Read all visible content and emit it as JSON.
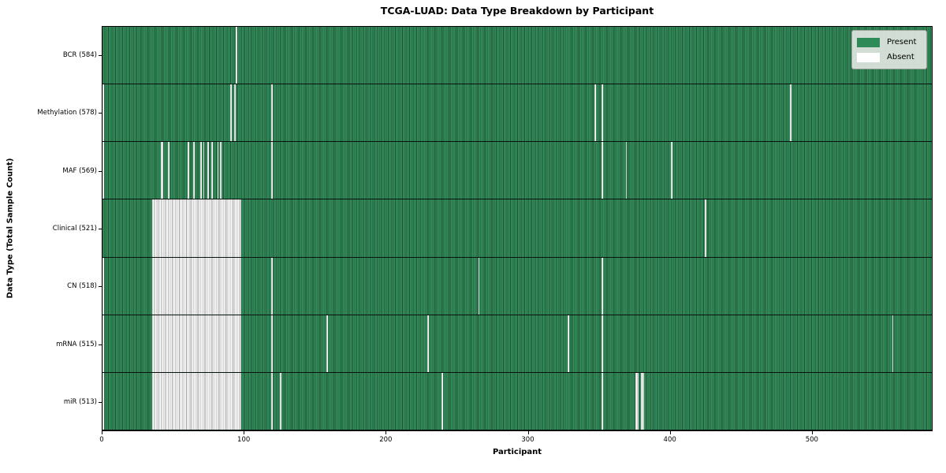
{
  "title": "TCGA-LUAD: Data Type Breakdown by Participant",
  "axes": {
    "xlabel": "Participant",
    "ylabel": "Data Type (Total Sample Count)"
  },
  "legend": {
    "present_label": "Present",
    "absent_label": "Absent"
  },
  "colors": {
    "present": "#2E8B57",
    "absent": "#ffffff",
    "present_gridline": "rgba(0,0,0,0.42)",
    "absent_gridline": "#a2a2a2"
  },
  "chart_data": {
    "type": "heatmap",
    "title": "TCGA-LUAD: Data Type Breakdown by Participant",
    "xlabel": "Participant",
    "ylabel": "Data Type (Total Sample Count)",
    "x_range": [
      0,
      585
    ],
    "total_participants": 585,
    "x_ticks": [
      0,
      100,
      200,
      300,
      400,
      500
    ],
    "grid": "cell-edges",
    "legend": [
      "Present",
      "Absent"
    ],
    "legend_position": "upper-right",
    "value_encoding": {
      "present": "green",
      "absent": "white"
    },
    "rows": [
      {
        "name": "BCR",
        "label": "BCR (584)",
        "present_count": 584,
        "absent_intervals": [
          [
            94,
            95
          ]
        ]
      },
      {
        "name": "Methylation",
        "label": "Methylation (578)",
        "present_count": 578,
        "absent_intervals": [
          [
            0,
            1
          ],
          [
            90,
            91
          ],
          [
            93,
            94
          ],
          [
            119,
            120
          ],
          [
            347,
            348
          ],
          [
            352,
            353
          ],
          [
            485,
            486
          ]
        ]
      },
      {
        "name": "MAF",
        "label": "MAF (569)",
        "present_count": 569,
        "absent_intervals": [
          [
            0,
            1
          ],
          [
            41,
            43
          ],
          [
            46,
            47
          ],
          [
            60,
            61
          ],
          [
            64,
            65
          ],
          [
            69,
            70
          ],
          [
            71,
            72
          ],
          [
            74,
            75
          ],
          [
            77,
            78
          ],
          [
            81,
            82
          ],
          [
            83,
            84
          ],
          [
            119,
            120
          ],
          [
            352,
            353
          ],
          [
            369,
            370
          ],
          [
            401,
            402
          ]
        ]
      },
      {
        "name": "Clinical",
        "label": "Clinical (521)",
        "present_count": 521,
        "absent_intervals": [
          [
            35,
            98
          ],
          [
            425,
            426
          ]
        ]
      },
      {
        "name": "CN",
        "label": "CN (518)",
        "present_count": 518,
        "absent_intervals": [
          [
            0,
            1
          ],
          [
            35,
            98
          ],
          [
            119,
            120
          ],
          [
            265,
            266
          ],
          [
            352,
            353
          ]
        ]
      },
      {
        "name": "mRNA",
        "label": "mRNA (515)",
        "present_count": 515,
        "absent_intervals": [
          [
            0,
            1
          ],
          [
            35,
            98
          ],
          [
            119,
            120
          ],
          [
            158,
            159
          ],
          [
            229,
            230
          ],
          [
            328,
            329
          ],
          [
            352,
            353
          ],
          [
            557,
            558
          ]
        ]
      },
      {
        "name": "miR",
        "label": "miR (513)",
        "present_count": 513,
        "absent_intervals": [
          [
            0,
            1
          ],
          [
            35,
            98
          ],
          [
            119,
            120
          ],
          [
            125,
            126
          ],
          [
            239,
            240
          ],
          [
            352,
            353
          ],
          [
            376,
            378
          ],
          [
            380,
            382
          ]
        ]
      }
    ]
  }
}
